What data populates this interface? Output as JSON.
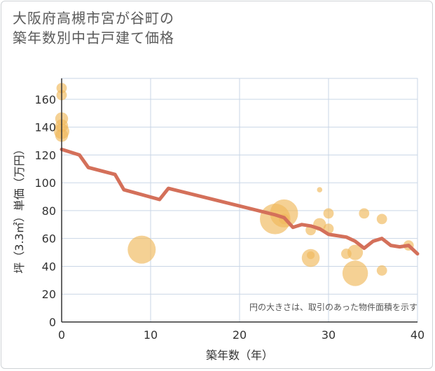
{
  "title_line1": "大阪府高槻市宮が谷町の",
  "title_line2": "築年数別中古戸建て価格",
  "chart_data": {
    "type": "scatter",
    "title": "大阪府高槻市宮が谷町の築年数別中古戸建て価格",
    "xlabel": "築年数（年）",
    "ylabel": "坪（3.3㎡）単価（万円）",
    "xlim": [
      0,
      40
    ],
    "ylim": [
      0,
      175
    ],
    "x_ticks": [
      0,
      10,
      20,
      30,
      40
    ],
    "y_ticks": [
      0,
      20,
      40,
      60,
      80,
      100,
      120,
      140,
      160
    ],
    "grid": true,
    "note": "円の大きさは、取引のあった物件面積を示す",
    "colors": {
      "bubble": "#f0b85a",
      "line": "#d4705a",
      "grid": "#c9d6e6"
    },
    "bubbles": [
      {
        "x": 0,
        "y": 168,
        "size": 3
      },
      {
        "x": 0,
        "y": 163,
        "size": 3
      },
      {
        "x": 0,
        "y": 146,
        "size": 4
      },
      {
        "x": 0,
        "y": 141,
        "size": 4
      },
      {
        "x": 0,
        "y": 137,
        "size": 5
      },
      {
        "x": 0,
        "y": 134,
        "size": 4
      },
      {
        "x": 9,
        "y": 52,
        "size": 10
      },
      {
        "x": 24,
        "y": 74,
        "size": 11
      },
      {
        "x": 25,
        "y": 78,
        "size": 10
      },
      {
        "x": 25,
        "y": 74,
        "size": 3
      },
      {
        "x": 28,
        "y": 66,
        "size": 3
      },
      {
        "x": 28,
        "y": 46,
        "size": 6
      },
      {
        "x": 28,
        "y": 48,
        "size": 2
      },
      {
        "x": 29,
        "y": 95,
        "size": 1
      },
      {
        "x": 29,
        "y": 70,
        "size": 4
      },
      {
        "x": 30,
        "y": 78,
        "size": 3
      },
      {
        "x": 30,
        "y": 67,
        "size": 3
      },
      {
        "x": 32,
        "y": 49,
        "size": 3
      },
      {
        "x": 33,
        "y": 50,
        "size": 5
      },
      {
        "x": 33,
        "y": 35,
        "size": 9
      },
      {
        "x": 34,
        "y": 78,
        "size": 3
      },
      {
        "x": 36,
        "y": 74,
        "size": 3
      },
      {
        "x": 36,
        "y": 37,
        "size": 3
      },
      {
        "x": 39,
        "y": 55,
        "size": 3
      }
    ],
    "trend": {
      "x": [
        0,
        2,
        3,
        6,
        7,
        11,
        12,
        24,
        25,
        26,
        27,
        28,
        29,
        30,
        32,
        33,
        34,
        35,
        36,
        37,
        38,
        39,
        40
      ],
      "y": [
        124,
        120,
        111,
        106,
        95,
        88,
        96,
        77,
        75,
        68,
        70,
        69,
        67,
        63,
        61,
        58,
        53,
        58,
        60,
        55,
        54,
        55,
        49
      ]
    }
  }
}
